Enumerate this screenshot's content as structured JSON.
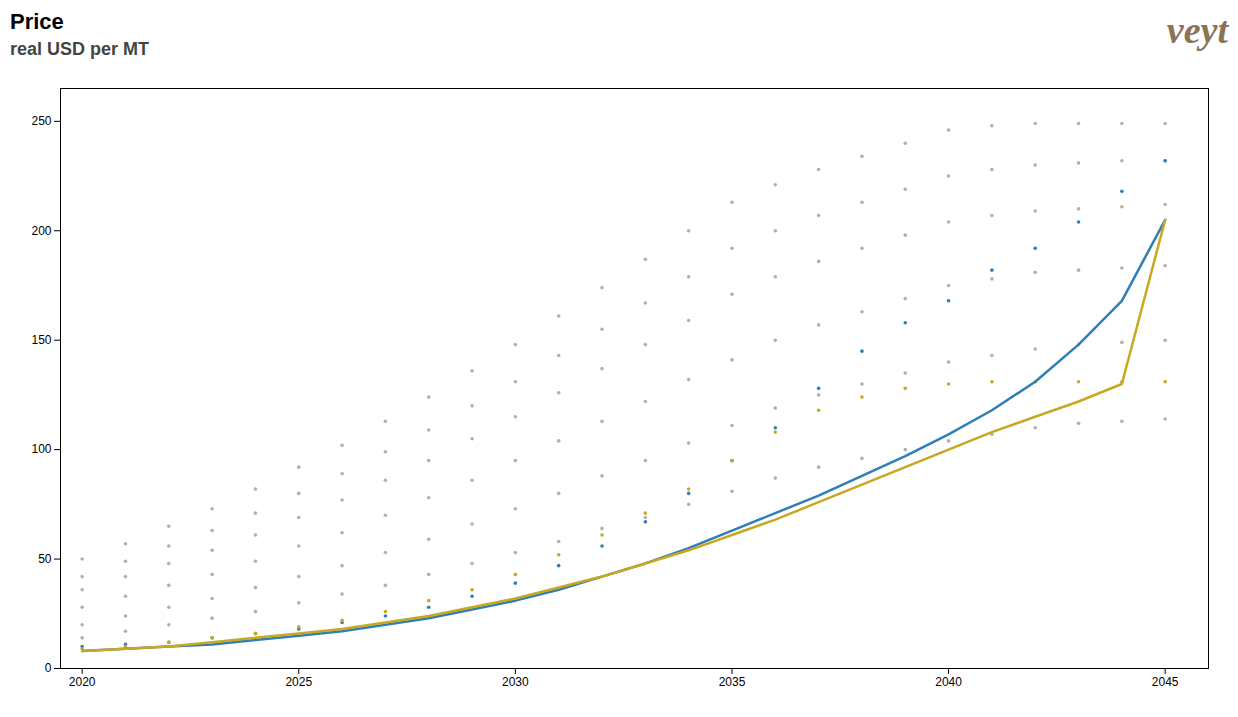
{
  "chart_data": {
    "type": "line",
    "title": "Price",
    "subtitle": "real USD per MT",
    "annotations": [
      {
        "text": "veyt",
        "color": "#8b7355"
      }
    ],
    "x": [
      2020,
      2021,
      2022,
      2023,
      2024,
      2025,
      2026,
      2027,
      2028,
      2029,
      2030,
      2031,
      2032,
      2033,
      2034,
      2035,
      2036,
      2037,
      2038,
      2039,
      2040,
      2041,
      2042,
      2043,
      2044,
      2045
    ],
    "series": [
      {
        "color": "#b0b0b0",
        "marker": "dot",
        "line_style": "none",
        "values": [
          50,
          57,
          65,
          73,
          82,
          92,
          102,
          113,
          124,
          136,
          148,
          161,
          174,
          187,
          200,
          213,
          221,
          228,
          234,
          240,
          246,
          248,
          249,
          249,
          249,
          249
        ]
      },
      {
        "color": "#b0b0b0",
        "marker": "dot",
        "line_style": "none",
        "values": [
          42,
          49,
          56,
          63,
          71,
          80,
          89,
          99,
          109,
          120,
          131,
          143,
          155,
          167,
          179,
          192,
          200,
          207,
          213,
          219,
          225,
          228,
          230,
          231,
          232,
          232
        ]
      },
      {
        "color": "#b0b0b0",
        "marker": "dot",
        "line_style": "none",
        "values": [
          36,
          42,
          48,
          54,
          61,
          69,
          77,
          86,
          95,
          105,
          115,
          126,
          137,
          148,
          159,
          171,
          179,
          186,
          192,
          198,
          204,
          207,
          209,
          210,
          211,
          212
        ]
      },
      {
        "color": "#b0b0b0",
        "marker": "dot",
        "line_style": "none",
        "values": [
          28,
          33,
          38,
          43,
          49,
          56,
          62,
          70,
          78,
          86,
          95,
          104,
          113,
          122,
          132,
          141,
          150,
          157,
          163,
          169,
          175,
          178,
          181,
          182,
          183,
          184
        ]
      },
      {
        "color": "#b0b0b0",
        "marker": "dot",
        "line_style": "none",
        "values": [
          20,
          24,
          28,
          32,
          37,
          42,
          47,
          53,
          59,
          66,
          73,
          80,
          88,
          95,
          103,
          111,
          119,
          125,
          130,
          135,
          140,
          143,
          146,
          148,
          149,
          150
        ]
      },
      {
        "color": "#b0b0b0",
        "marker": "dot",
        "line_style": "none",
        "values": [
          14,
          17,
          20,
          23,
          26,
          30,
          34,
          38,
          43,
          48,
          53,
          58,
          64,
          69,
          75,
          81,
          87,
          92,
          96,
          100,
          104,
          107,
          110,
          112,
          113,
          114
        ]
      },
      {
        "color": "#2e7fb5",
        "marker": "dot",
        "line_style": "none",
        "values": [
          10,
          11,
          12,
          14,
          16,
          18,
          21,
          24,
          28,
          33,
          39,
          47,
          56,
          67,
          80,
          95,
          110,
          128,
          145,
          158,
          168,
          182,
          192,
          204,
          218,
          232
        ]
      },
      {
        "color": "#c8a820",
        "marker": "dot",
        "line_style": "none",
        "values": [
          9,
          10,
          12,
          14,
          16,
          19,
          22,
          26,
          31,
          36,
          43,
          52,
          61,
          71,
          82,
          95,
          108,
          118,
          124,
          128,
          130,
          131,
          131,
          131,
          131,
          131
        ]
      },
      {
        "color": "#2e7fb5",
        "marker": "none",
        "line_style": "solid",
        "values": [
          8,
          9,
          10,
          11,
          13,
          15,
          17,
          20,
          23,
          27,
          31,
          36,
          42,
          48,
          55,
          63,
          71,
          79,
          88,
          97,
          107,
          118,
          131,
          148,
          168,
          205
        ]
      },
      {
        "color": "#c8a820",
        "marker": "none",
        "line_style": "solid",
        "values": [
          8,
          9,
          10,
          12,
          14,
          16,
          18,
          21,
          24,
          28,
          32,
          37,
          42,
          48,
          54,
          61,
          68,
          76,
          84,
          92,
          100,
          108,
          115,
          122,
          130,
          205
        ]
      }
    ],
    "xlim": [
      2019.5,
      2046
    ],
    "ylim": [
      0,
      265
    ],
    "xticks": [
      2020,
      2025,
      2030,
      2035,
      2040,
      2045
    ],
    "yticks": [
      0,
      50,
      100,
      150,
      200,
      250
    ],
    "grid": false
  }
}
